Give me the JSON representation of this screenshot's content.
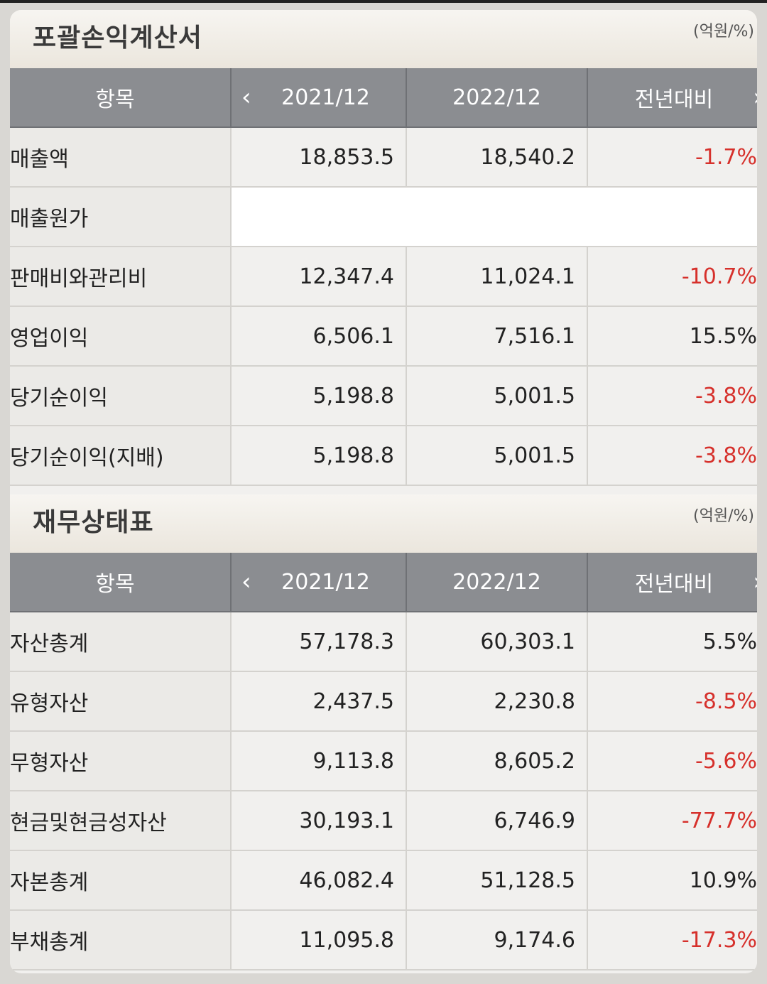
{
  "income": {
    "title": "포괄손익계산서",
    "unit": "(억원/%)",
    "headers": {
      "item": "항목",
      "col1": "2021/12",
      "col2": "2022/12",
      "col3": "전년대비"
    },
    "rows": [
      {
        "label": "매출액",
        "v2021": "18,853.5",
        "v2022": "18,540.2",
        "change": "-1.7%"
      },
      {
        "label": "매출원가",
        "v2021": "",
        "v2022": "",
        "change": ""
      },
      {
        "label": "판매비와관리비",
        "v2021": "12,347.4",
        "v2022": "11,024.1",
        "change": "-10.7%"
      },
      {
        "label": "영업이익",
        "v2021": "6,506.1",
        "v2022": "7,516.1",
        "change": "15.5%"
      },
      {
        "label": "당기순이익",
        "v2021": "5,198.8",
        "v2022": "5,001.5",
        "change": "-3.8%"
      },
      {
        "label": "당기순이익(지배)",
        "v2021": "5,198.8",
        "v2022": "5,001.5",
        "change": "-3.8%"
      }
    ]
  },
  "balance": {
    "title": "재무상태표",
    "unit": "(억원/%)",
    "headers": {
      "item": "항목",
      "col1": "2021/12",
      "col2": "2022/12",
      "col3": "전년대비"
    },
    "rows": [
      {
        "label": "자산총계",
        "v2021": "57,178.3",
        "v2022": "60,303.1",
        "change": "5.5%"
      },
      {
        "label": "유형자산",
        "v2021": "2,437.5",
        "v2022": "2,230.8",
        "change": "-8.5%"
      },
      {
        "label": "무형자산",
        "v2021": "9,113.8",
        "v2022": "8,605.2",
        "change": "-5.6%"
      },
      {
        "label": "현금및현금성자산",
        "v2021": "30,193.1",
        "v2022": "6,746.9",
        "change": "-77.7%"
      },
      {
        "label": "자본총계",
        "v2021": "46,082.4",
        "v2022": "51,128.5",
        "change": "10.9%"
      },
      {
        "label": "부채총계",
        "v2021": "11,095.8",
        "v2022": "9,174.6",
        "change": "-17.3%"
      }
    ]
  },
  "icons": {
    "prev": "chevron-left-icon",
    "next": "chevron-right-icon"
  },
  "colors": {
    "negative": "#d6302b",
    "header_bg": "#8b8d91"
  }
}
